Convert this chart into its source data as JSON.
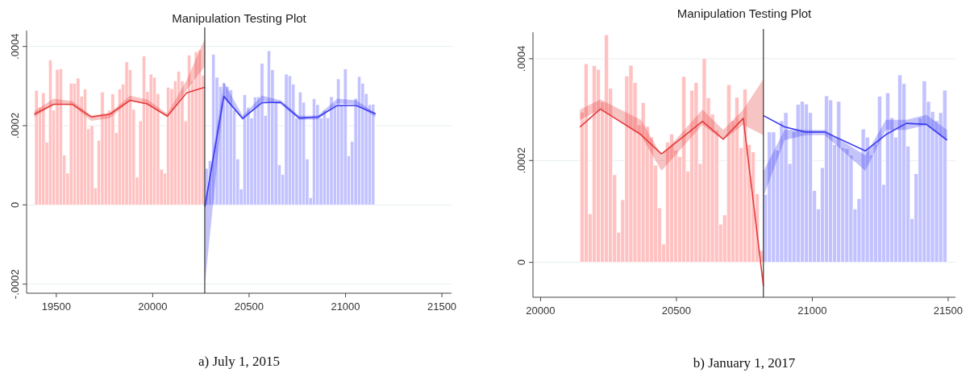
{
  "chart_data": [
    {
      "type": "histogram",
      "title": "Manipulation Testing Plot",
      "annotations": [
        "a) July 1, 2015"
      ],
      "xlim": [
        19346,
        21550
      ],
      "ylim": [
        -0.000223,
        0.00044
      ],
      "xticks": [
        19500,
        20000,
        20500,
        21000,
        21500
      ],
      "yticks": [
        {
          "value": -0.0002,
          "label": "-.0002"
        },
        0,
        {
          "value": 0.0002,
          "label": ".0002"
        },
        {
          "value": 0.0004,
          "label": ".0004"
        }
      ],
      "grid": "y",
      "ref_lines": [
        {
          "axis": "x",
          "value": 20270,
          "color": "#333333"
        }
      ],
      "series": [
        {
          "color": "#ffc2c2",
          "bins": [
            19388,
            19406,
            19424,
            19442,
            19460,
            19478,
            19496,
            19514,
            19532,
            19550,
            19568,
            19586,
            19604,
            19622,
            19640,
            19658,
            19676,
            19694,
            19712,
            19730,
            19748,
            19766,
            19784,
            19802,
            19820,
            19838,
            19856,
            19874,
            19892,
            19910,
            19928,
            19946,
            19964,
            19982,
            20000,
            20018,
            20036,
            20054,
            20072,
            20090,
            20108,
            20126,
            20144,
            20162,
            20180,
            20198,
            20216,
            20234,
            20252,
            20270
          ],
          "values": [
            0.000289,
            0.000247,
            0.000283,
            0.000158,
            0.000366,
            0.000239,
            0.000342,
            0.000344,
            0.000126,
            8e-05,
            0.000307,
            0.000307,
            0.00032,
            0.000274,
            0.000292,
            0.000192,
            0.0002,
            4.3e-05,
            0.000163,
            0.000285,
            0.000228,
            0.000239,
            0.00028,
            0.000182,
            0.000293,
            0.000305,
            0.000361,
            0.000341,
            0.000241,
            7e-05,
            0.000212,
            0.000376,
            0.000286,
            0.00033,
            0.000322,
            0.000281,
            9e-05,
            8e-05,
            0.000297,
            0.000293,
            0.000313,
            0.000337,
            0.000313,
            0.000212,
            0.000378,
            0.000313,
            0.000386,
            0.000391,
            0.000327
          ]
        },
        {
          "color": "#c2c2ff",
          "bins": [
            20270,
            20288,
            20306,
            20324,
            20342,
            20360,
            20378,
            20396,
            20414,
            20432,
            20450,
            20468,
            20486,
            20504,
            20522,
            20540,
            20558,
            20576,
            20594,
            20612,
            20630,
            20648,
            20666,
            20684,
            20702,
            20720,
            20738,
            20756,
            20774,
            20792,
            20810,
            20828,
            20846,
            20864,
            20882,
            20900,
            20918,
            20936,
            20954,
            20972,
            20990,
            21008,
            21026,
            21044,
            21062,
            21080,
            21098,
            21116,
            21134,
            21152
          ],
          "values": [
            9.2e-05,
            0.000112,
            0.00038,
            0.000322,
            0.000299,
            0.000308,
            0.000299,
            0.00029,
            0.000239,
            0.000116,
            4e-05,
            0.000278,
            0.000246,
            0.000219,
            0.000272,
            0.000273,
            0.000357,
            0.000226,
            0.000389,
            0.000341,
            0.000259,
            0.000101,
            7.7e-05,
            0.00033,
            0.000326,
            0.000305,
            0.000219,
            0.000285,
            0.000259,
            0.000116,
            1.8e-05,
            0.000268,
            0.000253,
            0.000219,
            0.000239,
            0.00022,
            0.000273,
            0.000253,
            0.000318,
            0.000253,
            0.000343,
            0.000124,
            0.00016,
            0.000269,
            0.000324,
            0.000307,
            0.000281,
            0.000253,
            0.000254
          ]
        },
        {
          "type": "line",
          "color": "#e53a3a",
          "x": [
            19386,
            19486,
            19583,
            19681,
            19778,
            19882,
            19972,
            20076,
            20176,
            20271
          ],
          "values": [
            0.000229,
            0.000254,
            0.000254,
            0.000222,
            0.000229,
            0.000264,
            0.000255,
            0.000224,
            0.000283,
            0.000297
          ],
          "lower": [
            0.000222,
            0.000254,
            0.000252,
            0.000212,
            0.000219,
            0.000262,
            0.000254,
            0.000222,
            0.00029,
            0.00035
          ],
          "upper": [
            0.000236,
            0.000268,
            0.000262,
            0.000226,
            0.000232,
            0.000276,
            0.000266,
            0.00023,
            0.000315,
            0.00042
          ]
        },
        {
          "type": "line",
          "color": "#3a3aee",
          "x": [
            20271,
            20369,
            20467,
            20567,
            20664,
            20761,
            20858,
            20958,
            21055,
            21156
          ],
          "values": [
            -4e-06,
            0.000274,
            0.000218,
            0.000258,
            0.000259,
            0.000219,
            0.000222,
            0.000251,
            0.000251,
            0.00023
          ],
          "lower": [
            -0.0002,
            0.00027,
            0.000215,
            0.000262,
            0.000254,
            0.000215,
            0.000216,
            0.000256,
            0.000254,
            0.000222
          ],
          "upper": [
            0,
            0.00031,
            0.000225,
            0.000276,
            0.000264,
            0.000225,
            0.000226,
            0.000268,
            0.000264,
            0.000232
          ]
        }
      ]
    },
    {
      "type": "histogram",
      "title": "Manipulation Testing Plot",
      "annotations": [
        "b) January 1, 2017"
      ],
      "xlim": [
        19972,
        21527
      ],
      "ylim": [
        -6.85e-05,
        0.000452
      ],
      "xticks": [
        20000,
        20500,
        21000,
        21500
      ],
      "yticks": [
        0,
        {
          "value": 0.0002,
          "label": ".0002"
        },
        {
          "value": 0.0004,
          "label": ".0004"
        }
      ],
      "grid": "y",
      "ref_lines": [
        {
          "axis": "x",
          "value": 20820,
          "color": "#333333"
        }
      ],
      "series": [
        {
          "color": "#ffc2c2",
          "bins": [
            20145,
            20160,
            20175,
            20190,
            20205,
            20220,
            20235,
            20250,
            20265,
            20280,
            20295,
            20310,
            20325,
            20340,
            20355,
            20370,
            20385,
            20400,
            20415,
            20430,
            20445,
            20460,
            20475,
            20490,
            20505,
            20520,
            20535,
            20550,
            20565,
            20580,
            20595,
            20610,
            20625,
            20640,
            20655,
            20670,
            20685,
            20700,
            20715,
            20730,
            20745,
            20760,
            20775,
            20790,
            20805,
            20820
          ],
          "values": [
            0.000295,
            0.00039,
            9.5e-05,
            0.000386,
            0.000379,
            0.000315,
            0.000447,
            0.000342,
            0.000172,
            5.9e-05,
            0.000123,
            0.000366,
            0.000387,
            0.000353,
            0.00027,
            0.000314,
            0.000267,
            0.000246,
            0.000191,
            0.000107,
            3.6e-05,
            0.000236,
            0.000252,
            0.00022,
            0.000208,
            0.000365,
            0.000179,
            0.000338,
            0.000353,
            0.000194,
            0.0004,
            0.000323,
            0.000291,
            0.000259,
            7.5e-05,
            9.3e-05,
            0.000349,
            0.000278,
            0.000324,
            0.000225,
            0.00034,
            0.000231,
            0.000217,
            0.000135,
            2.3e-05
          ]
        },
        {
          "color": "#c2c2ff",
          "bins": [
            20820,
            20835,
            20850,
            20865,
            20880,
            20895,
            20910,
            20925,
            20940,
            20955,
            20970,
            20985,
            21000,
            21015,
            21030,
            21045,
            21060,
            21075,
            21090,
            21105,
            21120,
            21135,
            21150,
            21165,
            21180,
            21195,
            21210,
            21225,
            21240,
            21255,
            21270,
            21285,
            21300,
            21315,
            21330,
            21345,
            21360,
            21375,
            21390,
            21405,
            21420,
            21435,
            21450,
            21465,
            21480,
            21495
          ],
          "values": [
            0.000133,
            0.000256,
            0.000256,
            0.00022,
            0.000278,
            0.000294,
            0.000194,
            0.000257,
            0.00031,
            0.000316,
            0.000311,
            0.000294,
            0.000141,
            0.000105,
            0.000186,
            0.000327,
            0.000319,
            0.000231,
            0.000316,
            0.000225,
            0.000223,
            0.00021,
            0.000105,
            0.000125,
            0.000262,
            0.000246,
            0.000211,
            0.000232,
            0.000326,
            0.000153,
            0.000333,
            0.000284,
            0.000246,
            0.000368,
            0.000351,
            0.000228,
            8.6e-05,
            0.000174,
            0.000284,
            0.000356,
            0.000316,
            0.000296,
            0.000278,
            0.000294,
            0.000338
          ]
        },
        {
          "type": "line",
          "color": "#e53a3a",
          "x": [
            20145,
            20220,
            20369,
            20445,
            20596,
            20672,
            20746,
            20820
          ],
          "values": [
            0.000266,
            0.000301,
            0.000251,
            0.000213,
            0.000277,
            0.000242,
            0.000283,
            -4.6e-05
          ],
          "lower": [
            0.00028,
            0.0003,
            0.00025,
            0.00018,
            0.00027,
            0.00024,
            0.00027,
            0.00025
          ],
          "upper": [
            0.0003,
            0.00032,
            0.00028,
            0.00021,
            0.0003,
            0.00026,
            0.0003,
            0.00036
          ]
        },
        {
          "type": "line",
          "color": "#3a3aee",
          "x": [
            20821,
            20898,
            20974,
            21046,
            21195,
            21271,
            21346,
            21420,
            21496
          ],
          "values": [
            0.000288,
            0.000266,
            0.000256,
            0.000256,
            0.000219,
            0.000251,
            0.000273,
            0.000271,
            0.00024
          ],
          "lower": [
            0.00013,
            0.00024,
            0.00025,
            0.00025,
            0.00018,
            0.00026,
            0.00026,
            0.00027,
            0.00024
          ],
          "upper": [
            0.00018,
            0.00026,
            0.00026,
            0.00026,
            0.00021,
            0.00028,
            0.00028,
            0.00029,
            0.00026
          ]
        }
      ]
    }
  ]
}
